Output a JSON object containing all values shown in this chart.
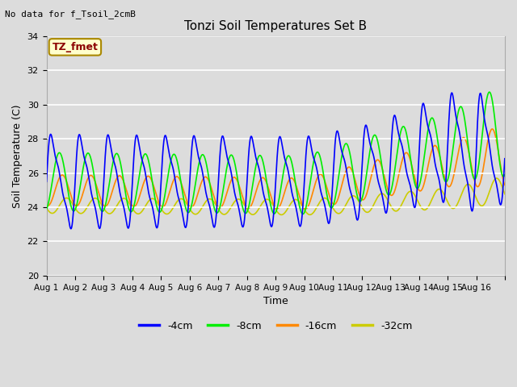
{
  "title": "Tonzi Soil Temperatures Set B",
  "xlabel": "Time",
  "ylabel": "Soil Temperature (C)",
  "no_data_label": "No data for f_Tsoil_2cmB",
  "tz_fmet_label": "TZ_fmet",
  "ylim": [
    20,
    34
  ],
  "yticks": [
    20,
    22,
    24,
    26,
    28,
    30,
    32,
    34
  ],
  "bg_color": "#dcdcdc",
  "plot_bg_color": "#dcdcdc",
  "line_colors": [
    "#0000ff",
    "#00ee00",
    "#ff8800",
    "#cccc00"
  ],
  "legend_labels": [
    "-4cm",
    "-8cm",
    "-16cm",
    "-32cm"
  ],
  "xtick_labels": [
    "Aug 1",
    "Aug 2",
    "Aug 3",
    "Aug 4",
    "Aug 5",
    "Aug 6",
    "Aug 7",
    "Aug 8",
    "Aug 9",
    "Aug 10",
    "Aug 11",
    "Aug 12",
    "Aug 13",
    "Aug 14",
    "Aug 15",
    "Aug 16"
  ],
  "n_days": 16,
  "pts_per_day": 200,
  "figsize": [
    6.4,
    4.8
  ],
  "dpi": 100
}
